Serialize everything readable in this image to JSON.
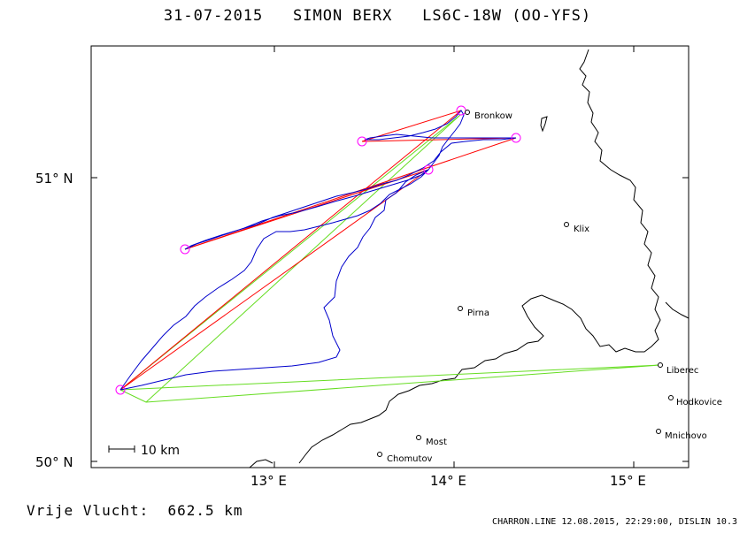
{
  "header": {
    "date": "31-07-2015",
    "pilot": "SIMON BERX",
    "glider": "LS6C-18W (OO-YFS)"
  },
  "footer": {
    "distance_label": "Vrije Vlucht:",
    "distance_value": "662.5 km",
    "credit": "CHARRON.LINE 12.08.2015, 22:29:00, DISLIN 10.3"
  },
  "axes": {
    "lat_ticks": [
      "51° N",
      "50° N"
    ],
    "lon_ticks": [
      "13° E",
      "14° E",
      "15° E"
    ],
    "scale_label": "10 km"
  },
  "places": [
    {
      "name": "Bronkow"
    },
    {
      "name": "Klix"
    },
    {
      "name": "Pirna"
    },
    {
      "name": "Liberec"
    },
    {
      "name": "Hodkovice"
    },
    {
      "name": "Most"
    },
    {
      "name": "Mnichovo"
    },
    {
      "name": "Chomutov"
    }
  ],
  "colors": {
    "track": "#0000cc",
    "task_red": "#ff0000",
    "task_green": "#66dd22",
    "turnpoint": "#ff00ff",
    "border": "#000000"
  }
}
